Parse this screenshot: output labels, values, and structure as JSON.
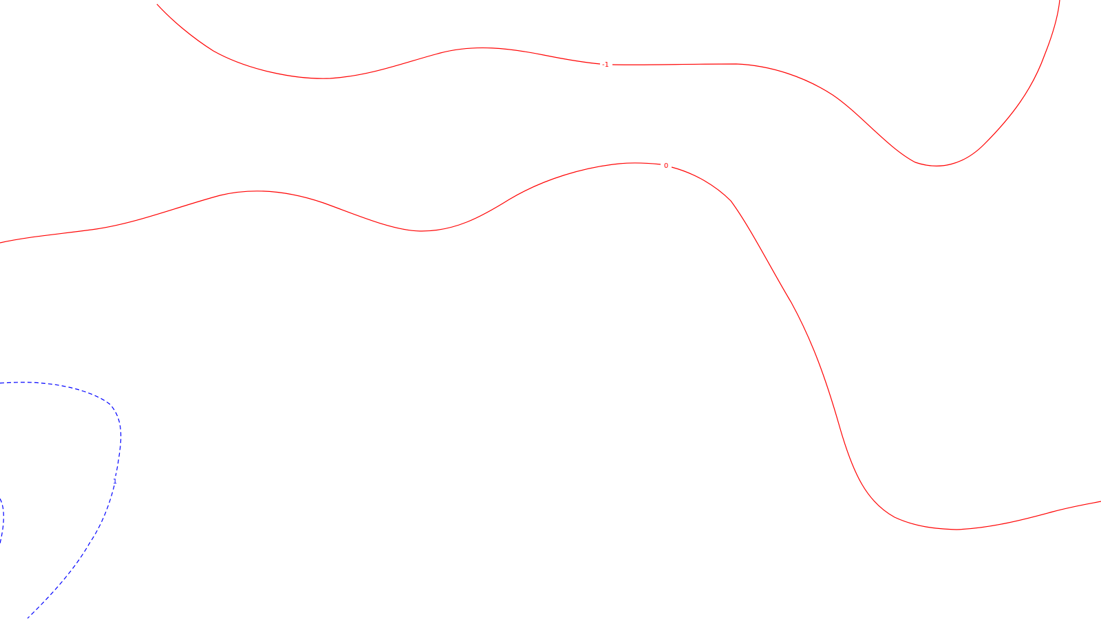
{
  "chart_data": {
    "type": "contour",
    "title": "",
    "xlabel": "",
    "ylabel": "",
    "grid": false,
    "colors": {
      "negative_or_zero": "#ff0000",
      "positive": "#0000ff",
      "background": "#ffffff"
    },
    "contours": [
      {
        "level": -1,
        "label": "-1",
        "color": "#ff0000",
        "style": "solid"
      },
      {
        "level": 0,
        "label": "0",
        "color": "#ff0000",
        "style": "solid"
      },
      {
        "level": 1,
        "label": "1",
        "color": "#0000ff",
        "style": "dashed"
      }
    ]
  }
}
